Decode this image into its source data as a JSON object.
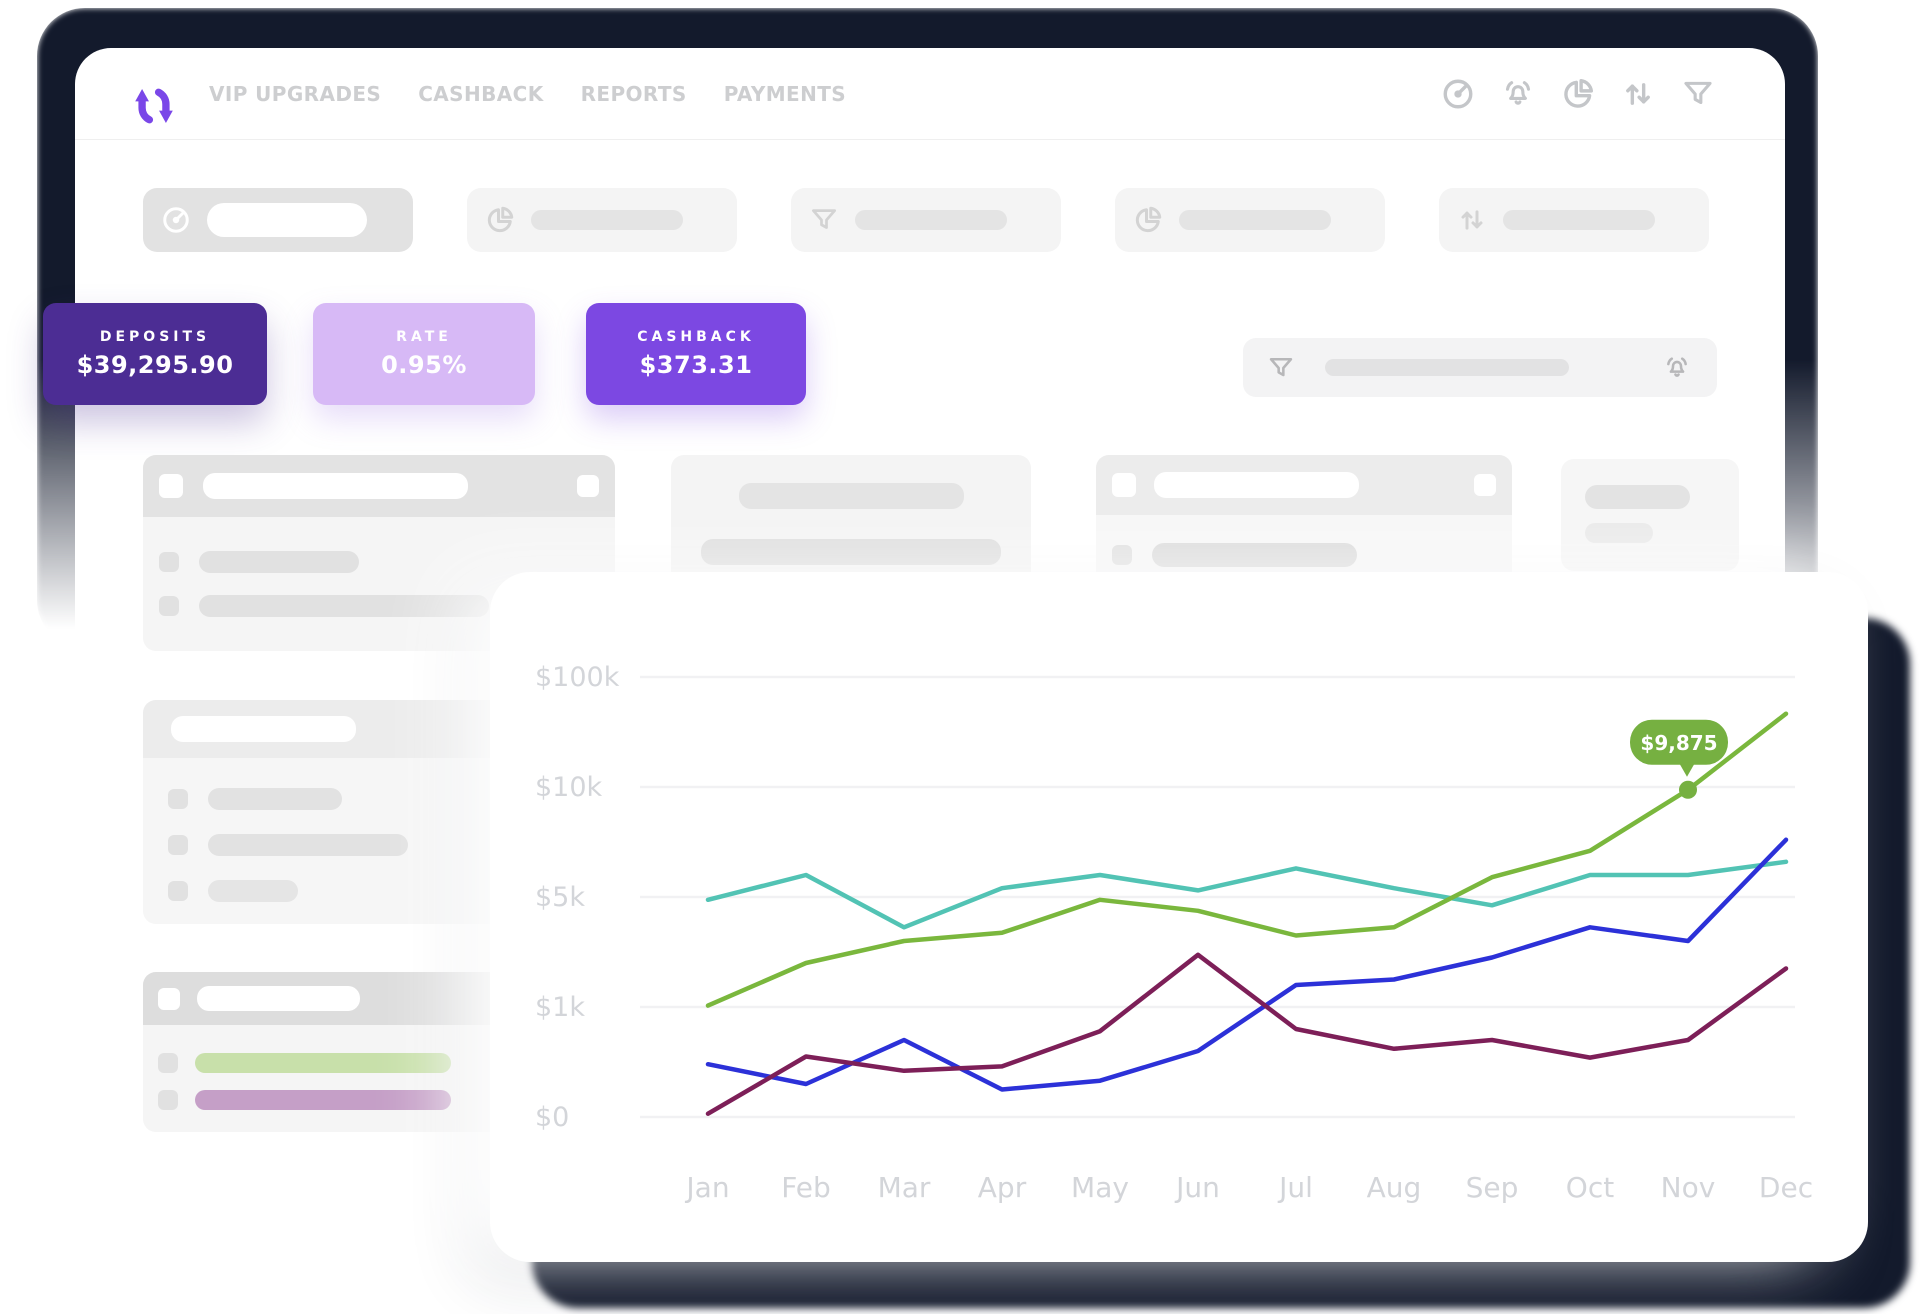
{
  "nav": {
    "items": [
      "VIP UPGRADES",
      "CASHBACK",
      "REPORTS",
      "PAYMENTS"
    ],
    "icon_names": [
      "gauge-icon",
      "bell-icon",
      "pie-chart-icon",
      "sort-arrows-icon",
      "filter-icon"
    ]
  },
  "logo": {
    "name": "swap-arrows-logo",
    "color": "#7a47e8"
  },
  "toolbar_buttons": [
    {
      "icon": "gauge-icon",
      "active": true
    },
    {
      "icon": "pie-chart-icon",
      "active": false
    },
    {
      "icon": "filter-icon",
      "active": false
    },
    {
      "icon": "pie-chart-icon",
      "active": false
    },
    {
      "icon": "sort-arrows-icon",
      "active": false
    }
  ],
  "stats": [
    {
      "label": "DEPOSITS",
      "value": "$39,295.90",
      "bg": "#4c2d94"
    },
    {
      "label": "RATE",
      "value": "0.95%",
      "bg": "#d7b9f6"
    },
    {
      "label": "CASHBACK",
      "value": "$373.31",
      "bg": "#7c48e2"
    }
  ],
  "search": {
    "icons": [
      "filter-icon",
      "bell-icon"
    ]
  },
  "list_accents": {
    "green_bar": "#c8e0aa",
    "mauve_bar": "#c59fc7"
  },
  "chart_data": {
    "type": "line",
    "categories": [
      "Jan",
      "Feb",
      "Mar",
      "Apr",
      "May",
      "Jun",
      "Jul",
      "Aug",
      "Sep",
      "Oct",
      "Nov",
      "Dec"
    ],
    "y_ticks": [
      {
        "label": "$0",
        "value": 0
      },
      {
        "label": "$1k",
        "value": 1000
      },
      {
        "label": "$5k",
        "value": 5000
      },
      {
        "label": "$10k",
        "value": 10000
      },
      {
        "label": "$100k",
        "value": 100000
      }
    ],
    "series": [
      {
        "name": "teal-series",
        "color": "#52c3b4",
        "values": [
          4900,
          6000,
          3900,
          5400,
          6000,
          5300,
          6300,
          5400,
          4700,
          6000,
          6000,
          6600
        ]
      },
      {
        "name": "green-series",
        "color": "#7ab73d",
        "values": [
          1050,
          2600,
          3400,
          3700,
          4900,
          4500,
          3600,
          3900,
          5900,
          7100,
          9875,
          70000
        ]
      },
      {
        "name": "blue-series",
        "color": "#2c31d8",
        "values": [
          480,
          300,
          700,
          250,
          330,
          600,
          1800,
          2000,
          2800,
          3900,
          3400,
          7600
        ]
      },
      {
        "name": "maroon-series",
        "color": "#7d1f58",
        "values": [
          30,
          550,
          420,
          460,
          780,
          2900,
          800,
          620,
          700,
          540,
          700,
          2400
        ]
      }
    ],
    "tooltip": {
      "series_index": 1,
      "point_index": 10,
      "label": "$9,875",
      "value": 9875,
      "bg": "#76b041"
    },
    "grid_color": "#f1f1f3",
    "label_color": "#d3d5d9",
    "xlabel": "",
    "ylabel": "",
    "legend": "none",
    "grid": "horizontal-only"
  }
}
